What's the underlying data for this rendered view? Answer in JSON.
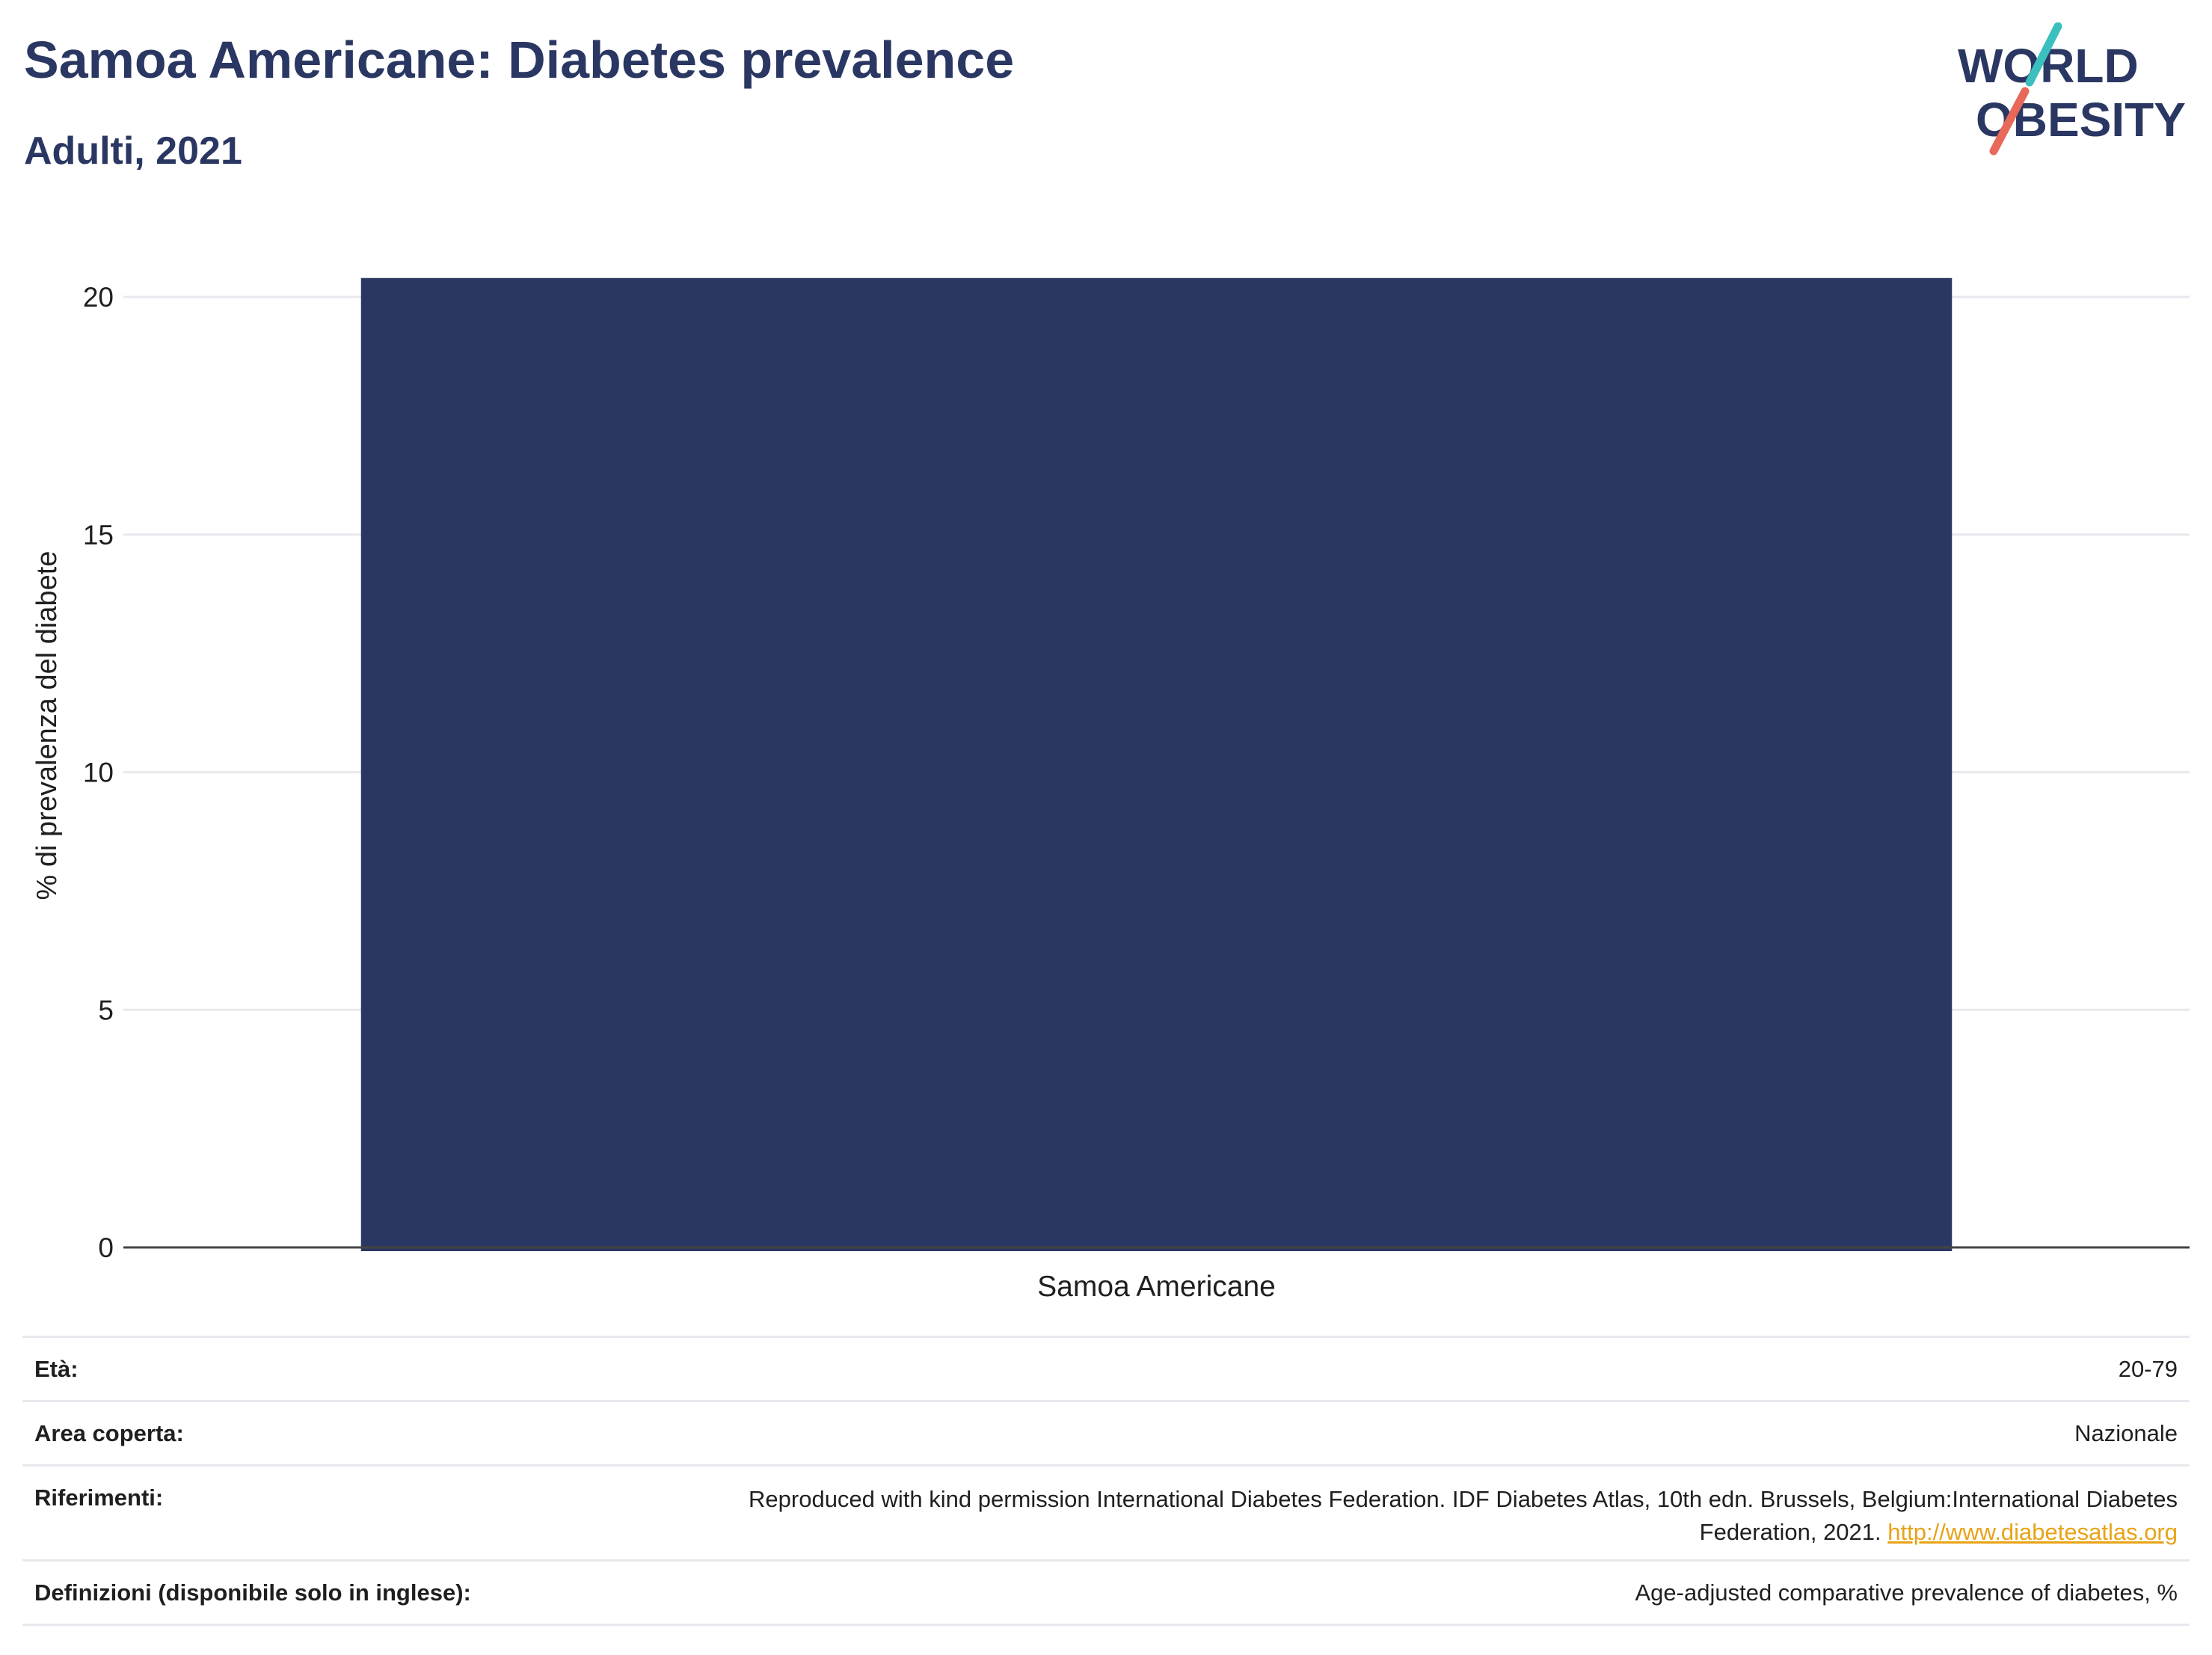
{
  "title": "Samoa Americane: Diabetes prevalence",
  "subtitle": "Adulti, 2021",
  "logo": {
    "line1": "WORLD",
    "line2": "OBESITY",
    "accent_teal": "#3bbfbf",
    "accent_coral": "#e8685a"
  },
  "colors": {
    "bar": "#2a3762",
    "text": "#2a3762",
    "grid": "#e8e8ee",
    "link": "#e8a317"
  },
  "chart_data": {
    "type": "bar",
    "categories": [
      "Samoa Americane"
    ],
    "values": [
      20.4
    ],
    "ylabel": "% di prevalenza del diabete",
    "xlabel": "",
    "ylim": [
      0,
      20.9
    ],
    "yticks": [
      0,
      5,
      10,
      15,
      20
    ],
    "grid": true
  },
  "info": {
    "age_label": "Età:",
    "age_value": "20-79",
    "area_label": "Area coperta:",
    "area_value": "Nazionale",
    "ref_label": "Riferimenti:",
    "ref_value": "Reproduced with kind permission International Diabetes Federation.  IDF Diabetes Atlas, 10th edn. Brussels, Belgium:International Diabetes Federation, 2021.",
    "ref_link": "http://www.diabetesatlas.org",
    "def_label": "Definizioni (disponibile solo in inglese):",
    "def_value": "Age-adjusted comparative prevalence of diabetes, %"
  }
}
